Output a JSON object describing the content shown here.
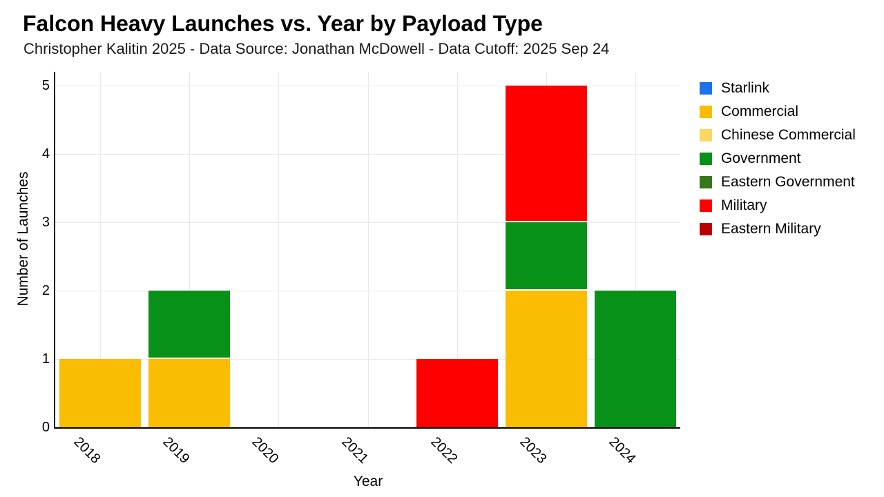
{
  "chart_data": {
    "type": "bar",
    "stacked": true,
    "title": "Falcon Heavy Launches vs. Year by Payload Type",
    "subtitle": "Christopher Kalitin 2025 - Data Source: Jonathan McDowell - Data Cutoff: 2025 Sep 24",
    "xlabel": "Year",
    "ylabel": "Number of Launches",
    "categories": [
      "2018",
      "2019",
      "2020",
      "2021",
      "2022",
      "2023",
      "2024"
    ],
    "yticks": [
      0,
      1,
      2,
      3,
      4,
      5
    ],
    "ylim": [
      0,
      5
    ],
    "grid": true,
    "legend_position": "right",
    "series": [
      {
        "name": "Starlink",
        "color": "#1a73e8",
        "values": [
          0,
          0,
          0,
          0,
          0,
          0,
          0
        ]
      },
      {
        "name": "Commercial",
        "color": "#fbbc04",
        "values": [
          1,
          1,
          0,
          0,
          0,
          2,
          0
        ]
      },
      {
        "name": "Chinese Commercial",
        "color": "#fdd663",
        "values": [
          0,
          0,
          0,
          0,
          0,
          0,
          0
        ]
      },
      {
        "name": "Government",
        "color": "#089118",
        "values": [
          0,
          1,
          0,
          0,
          0,
          1,
          2
        ]
      },
      {
        "name": "Eastern Government",
        "color": "#38761d",
        "values": [
          0,
          0,
          0,
          0,
          0,
          0,
          0
        ]
      },
      {
        "name": "Military",
        "color": "#ff0000",
        "values": [
          0,
          0,
          0,
          0,
          1,
          2,
          0
        ]
      },
      {
        "name": "Eastern Military",
        "color": "#b80000",
        "values": [
          0,
          0,
          0,
          0,
          0,
          0,
          0
        ]
      }
    ],
    "grid_color": "#e8e8e8",
    "axis_color": "#000000"
  }
}
